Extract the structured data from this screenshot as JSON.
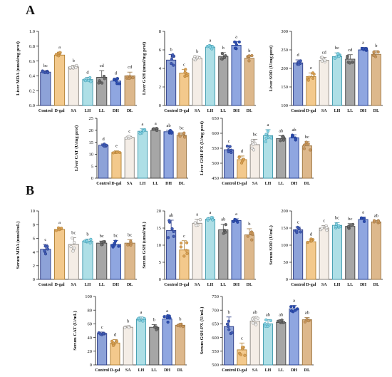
{
  "panels": {
    "a": "A",
    "b": "B"
  },
  "chart_data": [
    {
      "id": "liver-mda",
      "type": "bar",
      "ylabel": "Liver MDA (nmol/mg prot)",
      "categories": [
        "Control",
        "D-gal",
        "SA",
        "LH",
        "LL",
        "DH",
        "DL"
      ],
      "values": [
        0.45,
        0.68,
        0.52,
        0.35,
        0.38,
        0.33,
        0.4
      ],
      "errors": [
        0.02,
        0.04,
        0.02,
        0.03,
        0.09,
        0.04,
        0.05
      ],
      "letters": [
        "bc",
        "a",
        "b",
        "d",
        "cd",
        "d",
        "cd"
      ],
      "ylim": [
        0,
        1.0
      ],
      "yticks": [
        0.0,
        0.2,
        0.4,
        0.6,
        0.8,
        1.0
      ]
    },
    {
      "id": "liver-gsh",
      "type": "bar",
      "ylabel": "Liver GSH (nmol/mg prot)",
      "categories": [
        "Control",
        "D-gal",
        "SA",
        "LH",
        "LL",
        "DH",
        "DL"
      ],
      "values": [
        4.9,
        3.5,
        5.1,
        6.3,
        5.3,
        6.5,
        5.1
      ],
      "errors": [
        0.6,
        0.4,
        0.2,
        0.2,
        0.4,
        0.4,
        0.3
      ],
      "letters": [
        "b",
        "c",
        "b",
        "a",
        "b",
        "a",
        "b"
      ],
      "ylim": [
        0,
        8
      ],
      "yticks": [
        0,
        2,
        4,
        6,
        8
      ]
    },
    {
      "id": "liver-sod",
      "type": "bar",
      "ylabel": "Liver SOD (U/mg prot)",
      "categories": [
        "Control",
        "D-gal",
        "SA",
        "LH",
        "LL",
        "DH",
        "DL"
      ],
      "values": [
        215,
        178,
        222,
        232,
        225,
        250,
        238
      ],
      "errors": [
        8,
        10,
        8,
        10,
        12,
        7,
        10
      ],
      "letters": [
        "d",
        "e",
        "cd",
        "bc",
        "cd",
        "a",
        "b"
      ],
      "ylim": [
        100,
        300
      ],
      "yticks": [
        100,
        150,
        200,
        250,
        300
      ]
    },
    {
      "id": "liver-cat",
      "type": "bar",
      "ylabel": "Liver CAT (U/mg prot)",
      "categories": [
        "Control",
        "D-gal",
        "SA",
        "LH",
        "LL",
        "DH",
        "DL"
      ],
      "values": [
        13.8,
        10.8,
        17.0,
        19.6,
        20.0,
        19.4,
        17.9
      ],
      "errors": [
        0.5,
        0.6,
        0.5,
        1.0,
        0.8,
        0.6,
        1.0
      ],
      "letters": [
        "d",
        "e",
        "c",
        "a",
        "a",
        "ab",
        "bc"
      ],
      "ylim": [
        0,
        25
      ],
      "yticks": [
        0,
        5,
        10,
        15,
        20,
        25
      ]
    },
    {
      "id": "liver-gshpx",
      "type": "bar",
      "ylabel": "Liver GSH-PX (U/mg prot)",
      "categories": [
        "Control",
        "D-gal",
        "SA",
        "LH",
        "LL",
        "DH",
        "DL"
      ],
      "values": [
        545,
        512,
        562,
        592,
        582,
        585,
        558
      ],
      "errors": [
        12,
        12,
        18,
        20,
        10,
        10,
        14
      ],
      "letters": [
        "c",
        "d",
        "bc",
        "a",
        "ab",
        "ab",
        "bc"
      ],
      "ylim": [
        450,
        650
      ],
      "yticks": [
        450,
        500,
        550,
        600,
        650
      ]
    },
    {
      "id": "serum-mda",
      "type": "bar",
      "ylabel": "Serum MDA (nmol/mL)",
      "categories": [
        "Control",
        "D-gal",
        "SA",
        "LH",
        "LL",
        "DH",
        "DL"
      ],
      "values": [
        4.4,
        7.3,
        5.1,
        5.6,
        5.3,
        5.1,
        5.3
      ],
      "errors": [
        0.7,
        0.3,
        1.0,
        0.3,
        0.3,
        0.6,
        0.5
      ],
      "letters": [
        "c",
        "a",
        "bc",
        "b",
        "bc",
        "bc",
        "bc"
      ],
      "ylim": [
        0,
        10
      ],
      "yticks": [
        0,
        2,
        4,
        6,
        8,
        10
      ]
    },
    {
      "id": "serum-gsh",
      "type": "bar",
      "ylabel": "Serum GSH (umol/mL)",
      "categories": [
        "Control",
        "D-gal",
        "SA",
        "LH",
        "LL",
        "DH",
        "DL"
      ],
      "values": [
        14.3,
        8.6,
        16.4,
        17.6,
        14.5,
        17.2,
        13.0
      ],
      "errors": [
        3.0,
        2.7,
        1.2,
        0.5,
        1.6,
        0.5,
        1.8
      ],
      "letters": [
        "ab",
        "c",
        "a",
        "a",
        "ab",
        "a",
        "b"
      ],
      "ylim": [
        0,
        20
      ],
      "yticks": [
        0,
        5,
        10,
        15,
        20
      ]
    },
    {
      "id": "serum-sod",
      "type": "bar",
      "ylabel": "Serum SOD (U/mL)",
      "categories": [
        "Control",
        "D-gal",
        "SA",
        "LH",
        "LL",
        "DH",
        "DL"
      ],
      "values": [
        145,
        110,
        150,
        158,
        155,
        175,
        168
      ],
      "errors": [
        8,
        8,
        7,
        8,
        8,
        7,
        4
      ],
      "letters": [
        "c",
        "d",
        "c",
        "bc",
        "bc",
        "a",
        "ab"
      ],
      "ylim": [
        0,
        200
      ],
      "yticks": [
        0,
        50,
        100,
        150,
        200
      ]
    },
    {
      "id": "serum-cat",
      "type": "bar",
      "ylabel": "Serum CAT (U/mL)",
      "categories": [
        "Control",
        "D-gal",
        "SA",
        "LH",
        "LL",
        "DH",
        "DL"
      ],
      "values": [
        46,
        32,
        55,
        67,
        55,
        67,
        58
      ],
      "errors": [
        2,
        5,
        2,
        3,
        4,
        5,
        2
      ],
      "letters": [
        "c",
        "d",
        "b",
        "a",
        "b",
        "a",
        "b"
      ],
      "ylim": [
        0,
        100
      ],
      "yticks": [
        0,
        20,
        40,
        60,
        80,
        100
      ]
    },
    {
      "id": "serum-gshpx",
      "type": "bar",
      "ylabel": "Serum GSH-PX (U/mL)",
      "categories": [
        "Control",
        "D-gal",
        "SA",
        "LH",
        "LL",
        "DH",
        "DL"
      ],
      "values": [
        640,
        555,
        660,
        650,
        655,
        705,
        665
      ],
      "errors": [
        35,
        25,
        15,
        15,
        10,
        12,
        8
      ],
      "letters": [
        "b",
        "c",
        "ab",
        "ab",
        "ab",
        "a",
        "ab"
      ],
      "ylim": [
        500,
        750
      ],
      "yticks": [
        500,
        550,
        600,
        650,
        700,
        750
      ]
    }
  ],
  "colors": {
    "bars": [
      "#8da2d8",
      "#f3c98c",
      "#f4ede6",
      "#aedfe6",
      "#a6a6a6",
      "#8fa6e0",
      "#ddb88c"
    ],
    "edges": [
      "#2a3a86",
      "#b07f33",
      "#8a8680",
      "#3d98ad",
      "#444444",
      "#1f3a8f",
      "#9c7440"
    ],
    "dots": [
      "#3f5cb5",
      "#d9a055",
      "#f1f1f1",
      "#86d3e4",
      "#6b6b6b",
      "#2d4eb0",
      "#c9965c"
    ]
  }
}
